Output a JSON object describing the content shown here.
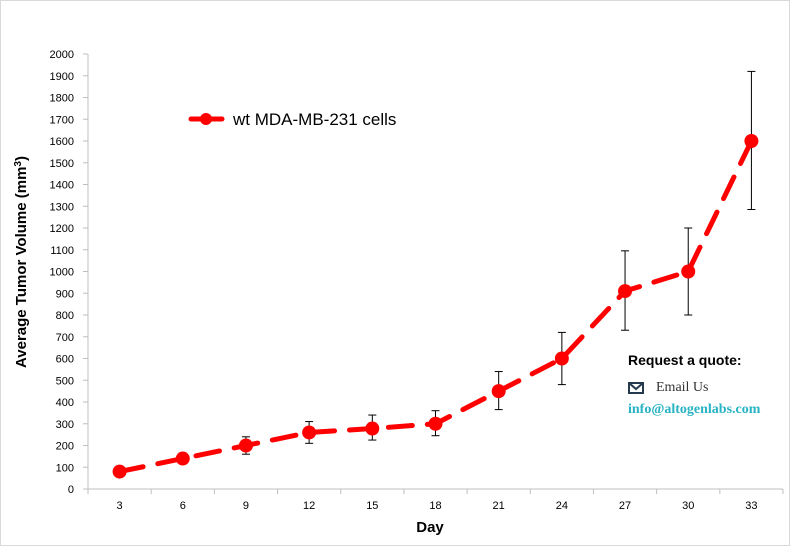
{
  "chart_data": {
    "type": "line",
    "title": "",
    "xlabel": "Day",
    "ylabel": "Average Tumor Volume (mm",
    "ylabel_sup": "3",
    "ylabel_close": ")",
    "ylim": [
      0,
      2000
    ],
    "yticks": [
      "0",
      "100",
      "200",
      "300",
      "400",
      "500",
      "600",
      "700",
      "800",
      "900",
      "1000",
      "1100",
      "1200",
      "1300",
      "1400",
      "1500",
      "1600",
      "1700",
      "1800",
      "1900",
      "2000"
    ],
    "categories": [
      "3",
      "6",
      "9",
      "12",
      "15",
      "18",
      "21",
      "24",
      "27",
      "30",
      "33"
    ],
    "series": [
      {
        "name": "wt MDA-MB-231 cells",
        "color": "#ff0000",
        "values": [
          80,
          140,
          200,
          260,
          278,
          300,
          450,
          600,
          910,
          1000,
          1600
        ],
        "error_upper": [
          80,
          140,
          240,
          310,
          340,
          360,
          540,
          720,
          1095,
          1200,
          1920
        ],
        "error_lower": [
          80,
          140,
          160,
          210,
          225,
          245,
          365,
          480,
          730,
          800,
          1285
        ]
      }
    ],
    "legend": "top-left",
    "grid": false
  },
  "quote": {
    "title": "Request a quote:",
    "email_label": "Email Us",
    "email_address": "info@altogenlabs.com",
    "link_color": "#27b3c3",
    "icon": "envelope-icon"
  }
}
